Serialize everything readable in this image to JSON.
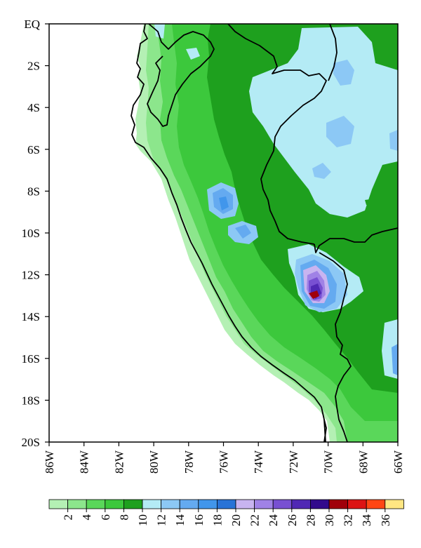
{
  "map": {
    "y_axis_labels": [
      "EQ",
      "2S",
      "4S",
      "6S",
      "8S",
      "10S",
      "12S",
      "14S",
      "16S",
      "18S",
      "20S"
    ],
    "x_axis_labels": [
      "86W",
      "84W",
      "82W",
      "80W",
      "78W",
      "76W",
      "74W",
      "72W",
      "70W",
      "68W",
      "66W"
    ],
    "extent": {
      "lon_west": -86,
      "lon_east": -66,
      "lat_north": 0,
      "lat_south": -20
    }
  },
  "colorbar": {
    "labels": [
      "2",
      "4",
      "6",
      "8",
      "10",
      "12",
      "14",
      "16",
      "18",
      "20",
      "22",
      "24",
      "26",
      "28",
      "30",
      "32",
      "34",
      "36"
    ],
    "colors": [
      "#b4f0b4",
      "#8ce68c",
      "#5ad75a",
      "#3cc83c",
      "#1ea01e",
      "#b4ebf5",
      "#8cc8f5",
      "#64aaf0",
      "#4196eb",
      "#2873d7",
      "#c8b4f0",
      "#a082e6",
      "#7850d2",
      "#5028b4",
      "#320a8c",
      "#a0000a",
      "#dc1414",
      "#ff4614",
      "#ffe682"
    ]
  },
  "fill_colors": {
    "level_2": "#b4f0b4",
    "level_4": "#8ce68c",
    "level_6": "#5ad75a",
    "level_8": "#3cc83c",
    "level_10": "#1ea01e",
    "level_12": "#b4ebf5",
    "level_14": "#8cc8f5",
    "level_16": "#64aaf0",
    "level_18": "#4196eb",
    "level_22": "#c8b4f0",
    "level_24": "#a082e6",
    "level_26": "#7850d2",
    "level_28": "#5028b4",
    "level_32": "#a0000a"
  }
}
